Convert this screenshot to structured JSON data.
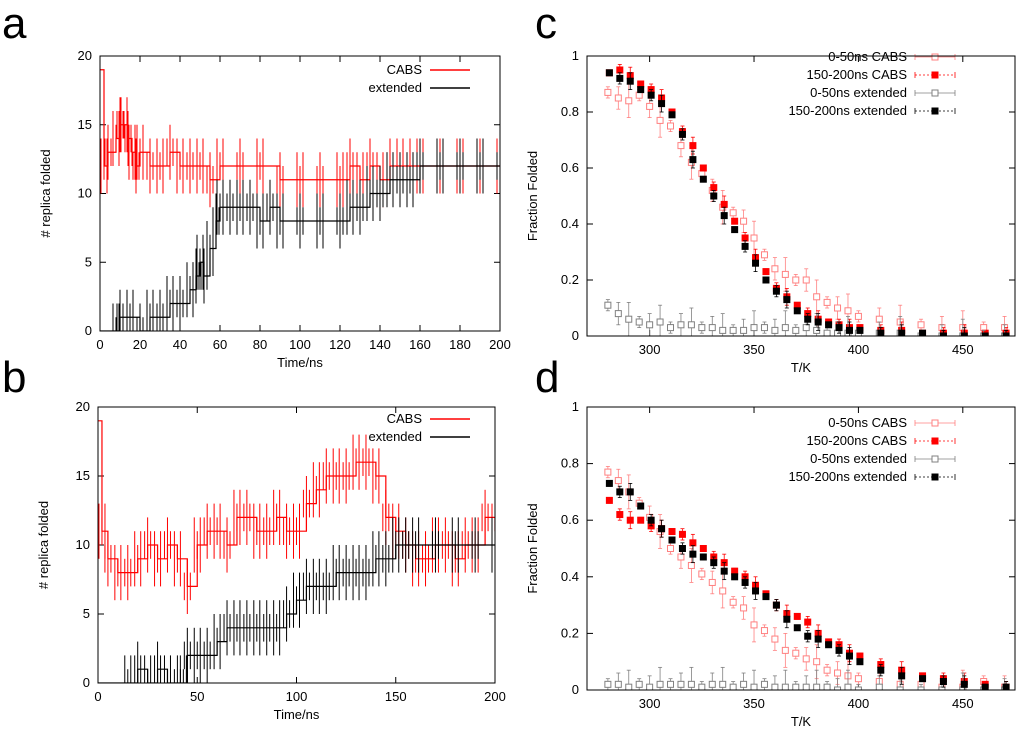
{
  "chart_data": [
    {
      "panel": "a",
      "type": "line",
      "xlabel": "Time/ns",
      "ylabel": "# replica folded",
      "xlim": [
        0,
        200
      ],
      "ylim": [
        0,
        20
      ],
      "xticks": [
        0,
        20,
        40,
        60,
        80,
        100,
        120,
        140,
        160,
        180,
        200
      ],
      "yticks": [
        0,
        5,
        10,
        15,
        20
      ],
      "legend": "top-right",
      "series": [
        {
          "name": "CABS",
          "color": "#ff0000",
          "x": [
            0,
            2,
            4,
            8,
            10,
            12,
            14,
            16,
            18,
            20,
            25,
            30,
            35,
            40,
            45,
            50,
            55,
            60,
            70,
            80,
            90,
            100,
            110,
            120,
            125,
            130,
            135,
            140,
            145,
            150,
            155,
            160,
            170,
            180,
            190,
            200
          ],
          "values": [
            19,
            12,
            13,
            14,
            15,
            15,
            14,
            13,
            12,
            13,
            12,
            12,
            13,
            12,
            12,
            12,
            11,
            12,
            12,
            12,
            11,
            11,
            11,
            11,
            12,
            11,
            12,
            11,
            12,
            12,
            12,
            12,
            12,
            12,
            12,
            12
          ]
        },
        {
          "name": "extended",
          "color": "#000000",
          "x": [
            0,
            8,
            10,
            15,
            20,
            25,
            30,
            35,
            40,
            45,
            48,
            50,
            52,
            55,
            58,
            60,
            65,
            70,
            75,
            80,
            85,
            90,
            100,
            110,
            120,
            125,
            130,
            135,
            140,
            145,
            150,
            155,
            160,
            170,
            180,
            190,
            200
          ],
          "values": [
            0,
            0,
            1,
            1,
            0,
            1,
            1,
            2,
            2,
            3,
            4,
            5,
            4,
            6,
            8,
            9,
            9,
            9,
            9,
            8,
            9,
            8,
            8,
            8,
            8,
            9,
            9,
            10,
            10,
            11,
            11,
            11,
            12,
            12,
            12,
            12,
            12
          ]
        }
      ]
    },
    {
      "panel": "b",
      "type": "line",
      "xlabel": "Time/ns",
      "ylabel": "# replica folded",
      "xlim": [
        0,
        200
      ],
      "ylim": [
        0,
        20
      ],
      "xticks": [
        0,
        50,
        100,
        150,
        200
      ],
      "yticks": [
        0,
        5,
        10,
        15,
        20
      ],
      "legend": "top-right",
      "series": [
        {
          "name": "CABS",
          "color": "#ff0000",
          "x": [
            0,
            2,
            5,
            10,
            15,
            20,
            25,
            30,
            35,
            40,
            45,
            50,
            55,
            60,
            65,
            70,
            75,
            80,
            85,
            90,
            95,
            100,
            105,
            110,
            115,
            120,
            125,
            130,
            135,
            140,
            145,
            150,
            155,
            160,
            165,
            170,
            175,
            180,
            185,
            190,
            195,
            200
          ],
          "values": [
            19,
            11,
            9,
            8,
            8,
            9,
            10,
            9,
            10,
            9,
            7,
            10,
            11,
            11,
            10,
            12,
            12,
            11,
            11,
            12,
            11,
            11,
            13,
            14,
            15,
            15,
            15,
            16,
            16,
            15,
            12,
            11,
            10,
            9,
            9,
            10,
            10,
            9,
            10,
            10,
            12,
            11
          ]
        },
        {
          "name": "extended",
          "color": "#000000",
          "x": [
            0,
            15,
            20,
            25,
            30,
            35,
            40,
            43,
            45,
            50,
            55,
            60,
            65,
            70,
            75,
            80,
            85,
            90,
            95,
            100,
            105,
            110,
            115,
            120,
            125,
            130,
            135,
            140,
            145,
            150,
            155,
            160,
            170,
            180,
            190,
            200
          ],
          "values": [
            0,
            0,
            1,
            0,
            1,
            0,
            0,
            0,
            2,
            2,
            2,
            3,
            4,
            4,
            4,
            4,
            4,
            4,
            5,
            6,
            7,
            7,
            7,
            8,
            8,
            8,
            8,
            9,
            9,
            10,
            10,
            10,
            10,
            10,
            10,
            10
          ]
        }
      ]
    },
    {
      "panel": "c",
      "type": "scatter",
      "xlabel": "T/K",
      "ylabel": "Fraction Folded",
      "xlim": [
        270,
        475
      ],
      "ylim": [
        0,
        1
      ],
      "xticks": [
        300,
        350,
        400,
        450
      ],
      "yticks": [
        0,
        0.2,
        0.4,
        0.6,
        0.8,
        1
      ],
      "legend": "top-right",
      "x": [
        280,
        285,
        290,
        295,
        300,
        305,
        310,
        315,
        320,
        325,
        330,
        335,
        340,
        345,
        350,
        355,
        360,
        365,
        370,
        375,
        380,
        385,
        390,
        395,
        400,
        410,
        420,
        430,
        440,
        450,
        460,
        470
      ],
      "series": [
        {
          "name": "0-50ns CABS",
          "color": "#ff8080",
          "marker": "open-square",
          "values": [
            0.87,
            0.85,
            0.84,
            0.86,
            0.82,
            0.77,
            0.75,
            0.68,
            0.62,
            0.58,
            0.52,
            0.46,
            0.44,
            0.41,
            0.35,
            0.29,
            0.24,
            0.22,
            0.2,
            0.2,
            0.14,
            0.12,
            0.1,
            0.09,
            0.07,
            0.06,
            0.05,
            0.04,
            0.03,
            0.03,
            0.03,
            0.03
          ]
        },
        {
          "name": "150-200ns CABS",
          "color": "#ff0000",
          "marker": "filled-square",
          "values": [
            0.94,
            0.95,
            0.93,
            0.9,
            0.88,
            0.85,
            0.8,
            0.73,
            0.68,
            0.6,
            0.53,
            0.47,
            0.41,
            0.35,
            0.28,
            0.23,
            0.17,
            0.14,
            0.11,
            0.08,
            0.06,
            0.05,
            0.04,
            0.03,
            0.03,
            0.02,
            0.02,
            0.01,
            0.01,
            0.01,
            0.01,
            0.01
          ]
        },
        {
          "name": "0-50ns extended",
          "color": "#808080",
          "marker": "open-square",
          "values": [
            0.11,
            0.08,
            0.06,
            0.05,
            0.04,
            0.05,
            0.03,
            0.04,
            0.04,
            0.03,
            0.03,
            0.02,
            0.02,
            0.02,
            0.03,
            0.03,
            0.02,
            0.03,
            0.02,
            0.03,
            0.02,
            0.01,
            0.01,
            0.01,
            0.01,
            0.01,
            0.01,
            0.0,
            0.0,
            0.0,
            0.0,
            0.0
          ]
        },
        {
          "name": "150-200ns extended",
          "color": "#000000",
          "marker": "filled-square",
          "values": [
            0.94,
            0.92,
            0.91,
            0.88,
            0.86,
            0.83,
            0.79,
            0.72,
            0.63,
            0.56,
            0.5,
            0.43,
            0.38,
            0.32,
            0.26,
            0.2,
            0.16,
            0.13,
            0.09,
            0.06,
            0.05,
            0.04,
            0.03,
            0.02,
            0.02,
            0.01,
            0.01,
            0.01,
            0.0,
            0.0,
            0.0,
            0.0
          ]
        }
      ]
    },
    {
      "panel": "d",
      "type": "scatter",
      "xlabel": "T/K",
      "ylabel": "Fraction Folded",
      "xlim": [
        270,
        475
      ],
      "ylim": [
        0,
        1
      ],
      "xticks": [
        300,
        350,
        400,
        450
      ],
      "yticks": [
        0,
        0.2,
        0.4,
        0.6,
        0.8,
        1
      ],
      "legend": "top-right",
      "x": [
        280,
        285,
        290,
        295,
        300,
        305,
        310,
        315,
        320,
        325,
        330,
        335,
        340,
        345,
        350,
        355,
        360,
        365,
        370,
        375,
        380,
        385,
        390,
        395,
        400,
        410,
        420,
        430,
        440,
        450,
        460,
        470
      ],
      "series": [
        {
          "name": "0-50ns CABS",
          "color": "#ff8080",
          "marker": "open-square",
          "values": [
            0.77,
            0.74,
            0.7,
            0.66,
            0.61,
            0.56,
            0.5,
            0.47,
            0.44,
            0.41,
            0.38,
            0.35,
            0.31,
            0.29,
            0.23,
            0.21,
            0.18,
            0.14,
            0.13,
            0.11,
            0.1,
            0.07,
            0.06,
            0.05,
            0.04,
            0.03,
            0.02,
            0.02,
            0.01,
            0.01,
            0.03,
            0.01
          ]
        },
        {
          "name": "150-200ns CABS",
          "color": "#ff0000",
          "marker": "filled-square",
          "values": [
            0.67,
            0.62,
            0.6,
            0.6,
            0.58,
            0.57,
            0.56,
            0.55,
            0.52,
            0.5,
            0.47,
            0.45,
            0.42,
            0.4,
            0.37,
            0.34,
            0.3,
            0.27,
            0.26,
            0.24,
            0.2,
            0.17,
            0.16,
            0.13,
            0.12,
            0.09,
            0.07,
            0.05,
            0.04,
            0.03,
            0.02,
            0.01
          ]
        },
        {
          "name": "0-50ns extended",
          "color": "#808080",
          "marker": "open-square",
          "values": [
            0.02,
            0.02,
            0.01,
            0.02,
            0.01,
            0.02,
            0.02,
            0.02,
            0.02,
            0.01,
            0.02,
            0.02,
            0.01,
            0.02,
            0.01,
            0.02,
            0.01,
            0.01,
            0.01,
            0.01,
            0.01,
            0.01,
            0.0,
            0.01,
            0.0,
            0.01,
            0.0,
            0.0,
            0.0,
            0.0,
            0.0,
            0.0
          ]
        },
        {
          "name": "150-200ns extended",
          "color": "#000000",
          "marker": "filled-square",
          "values": [
            0.73,
            0.7,
            0.7,
            0.65,
            0.6,
            0.57,
            0.53,
            0.5,
            0.48,
            0.47,
            0.45,
            0.42,
            0.4,
            0.38,
            0.35,
            0.33,
            0.3,
            0.25,
            0.22,
            0.19,
            0.18,
            0.16,
            0.14,
            0.12,
            0.1,
            0.07,
            0.05,
            0.04,
            0.03,
            0.02,
            0.01,
            0.01
          ]
        }
      ]
    }
  ]
}
